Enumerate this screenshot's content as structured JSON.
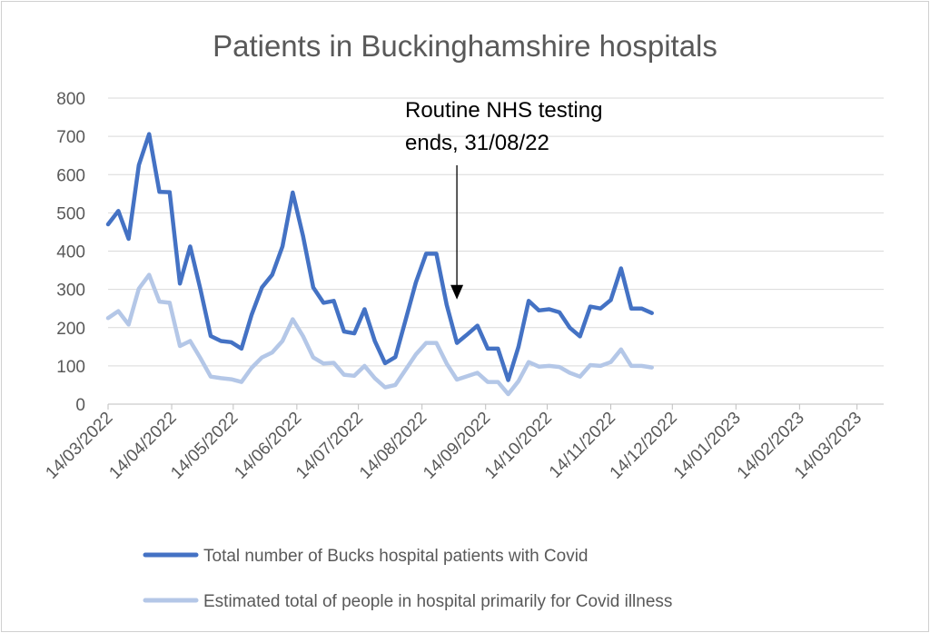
{
  "chart_data": {
    "type": "line",
    "title": "Patients in Buckinghamshire hospitals",
    "xlabel": "",
    "ylabel": "",
    "ylim": [
      0,
      800
    ],
    "yticks": [
      0,
      100,
      200,
      300,
      400,
      500,
      600,
      700,
      800
    ],
    "xlim": [
      "2022-03-14",
      "2023-03-27"
    ],
    "xticks": [
      "14/03/2022",
      "14/04/2022",
      "14/05/2022",
      "14/06/2022",
      "14/07/2022",
      "14/08/2022",
      "14/09/2022",
      "14/10/2022",
      "14/11/2022",
      "14/12/2022",
      "14/01/2023",
      "14/02/2023",
      "14/03/2023"
    ],
    "grid": true,
    "legend_position": "bottom",
    "x": [
      "2022-03-14",
      "2022-03-19",
      "2022-03-24",
      "2022-03-29",
      "2022-04-03",
      "2022-04-08",
      "2022-04-13",
      "2022-04-18",
      "2022-04-23",
      "2022-04-28",
      "2022-05-03",
      "2022-05-08",
      "2022-05-13",
      "2022-05-18",
      "2022-05-23",
      "2022-05-28",
      "2022-06-02",
      "2022-06-07",
      "2022-06-12",
      "2022-06-17",
      "2022-06-22",
      "2022-06-27",
      "2022-07-02",
      "2022-07-07",
      "2022-07-12",
      "2022-07-17",
      "2022-07-22",
      "2022-07-27",
      "2022-08-01",
      "2022-08-06",
      "2022-08-11",
      "2022-08-16",
      "2022-08-21",
      "2022-08-26",
      "2022-08-31",
      "2022-09-05",
      "2022-09-10",
      "2022-09-15",
      "2022-09-20",
      "2022-09-25",
      "2022-09-30",
      "2022-10-05",
      "2022-10-10",
      "2022-10-15",
      "2022-10-20",
      "2022-10-25",
      "2022-10-30",
      "2022-11-04",
      "2022-11-09",
      "2022-11-14",
      "2022-11-19",
      "2022-11-24",
      "2022-11-29",
      "2022-12-04",
      "2022-12-09",
      "2022-12-14",
      "2022-12-19",
      "2022-12-24",
      "2022-12-29",
      "2023-01-03",
      "2023-01-08",
      "2023-01-13",
      "2023-01-18",
      "2023-01-23",
      "2023-01-28",
      "2023-02-02",
      "2023-02-07",
      "2023-02-12",
      "2023-02-17",
      "2023-02-22",
      "2023-02-27",
      "2023-03-04",
      "2023-03-09"
    ],
    "series": [
      {
        "name": "Total number of Bucks hospital patients with Covid",
        "color": "#4472c4",
        "values": [
          470,
          505,
          432,
          625,
          706,
          555,
          554,
          315,
          412,
          300,
          178,
          165,
          162,
          145,
          234,
          305,
          338,
          412,
          553,
          440,
          305,
          265,
          270,
          190,
          185,
          248,
          165,
          107,
          123,
          220,
          318,
          393,
          393,
          260,
          160,
          182,
          205,
          145,
          145,
          63,
          150,
          270,
          245,
          248,
          240,
          200,
          177,
          255,
          250,
          272,
          355,
          250,
          250,
          238,
          null,
          null,
          null,
          null,
          null,
          null,
          null,
          null,
          null,
          null,
          null,
          null,
          null,
          null,
          null,
          null,
          null,
          null,
          null
        ]
      },
      {
        "name": "Estimated total of people in hospital primarily for Covid illness",
        "color": "#b4c7e7",
        "values": [
          225,
          243,
          208,
          302,
          338,
          268,
          265,
          152,
          165,
          120,
          72,
          68,
          65,
          58,
          95,
          122,
          135,
          165,
          222,
          178,
          122,
          106,
          108,
          77,
          74,
          100,
          68,
          44,
          50,
          90,
          130,
          160,
          160,
          106,
          64,
          73,
          82,
          58,
          58,
          26,
          60,
          110,
          98,
          100,
          97,
          82,
          72,
          102,
          100,
          110,
          143,
          100,
          100,
          96,
          null,
          null,
          null,
          null,
          null,
          null,
          null,
          null,
          null,
          null,
          null,
          null,
          null,
          null,
          null,
          null,
          null,
          null,
          null
        ]
      }
    ],
    "annotation": {
      "line1": "Routine NHS testing",
      "line2": "ends, 31/08/22",
      "target_x": "2022-08-31",
      "target_y": 250
    }
  }
}
